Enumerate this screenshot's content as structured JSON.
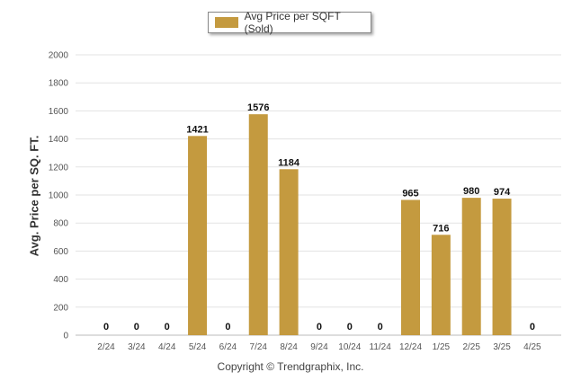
{
  "chart_data": {
    "type": "bar",
    "categories": [
      "2/24",
      "3/24",
      "4/24",
      "5/24",
      "6/24",
      "7/24",
      "8/24",
      "9/24",
      "10/24",
      "11/24",
      "12/24",
      "1/25",
      "2/25",
      "3/25",
      "4/25"
    ],
    "series": [
      {
        "name": "Avg Price per SQFT (Sold)",
        "values": [
          0,
          0,
          0,
          1421,
          0,
          1576,
          1184,
          0,
          0,
          0,
          965,
          716,
          980,
          974,
          0
        ]
      }
    ],
    "ylabel": "Avg. Price per SQ. FT.",
    "ylim": [
      0,
      2000
    ],
    "yticks": [
      0,
      200,
      400,
      600,
      800,
      1000,
      1200,
      1400,
      1600,
      1800,
      2000
    ],
    "grid": true,
    "legend_position": "top-center",
    "bar_color": "#c49a3f"
  },
  "footer": {
    "copyright": "Copyright © Trendgraphix, Inc."
  }
}
